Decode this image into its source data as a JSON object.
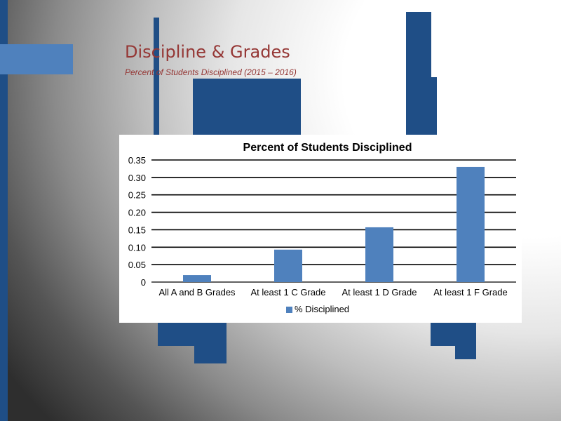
{
  "slide": {
    "title": "Discipline & Grades",
    "subtitle": "Percent of Students Disciplined (2015 – 2016)"
  },
  "colors": {
    "accent_dark": "#1f4e86",
    "accent_light": "#4f81bd",
    "bar": "#4f81bd",
    "title": "#953735"
  },
  "chart_data": {
    "type": "bar",
    "title": "Percent of Students Disciplined",
    "categories": [
      "All A and B Grades",
      "At least 1 C Grade",
      "At least 1 D Grade",
      "At least 1 F Grade"
    ],
    "series": [
      {
        "name": "% Disciplined",
        "values": [
          0.02,
          0.093,
          0.157,
          0.33
        ]
      }
    ],
    "yticks": [
      "0",
      "0.05",
      "0.10",
      "0.15",
      "0.20",
      "0.25",
      "0.30",
      "0.35"
    ],
    "ylim": [
      0,
      0.35
    ],
    "xlabel": "",
    "ylabel": "",
    "grid": true,
    "legend_position": "bottom"
  }
}
